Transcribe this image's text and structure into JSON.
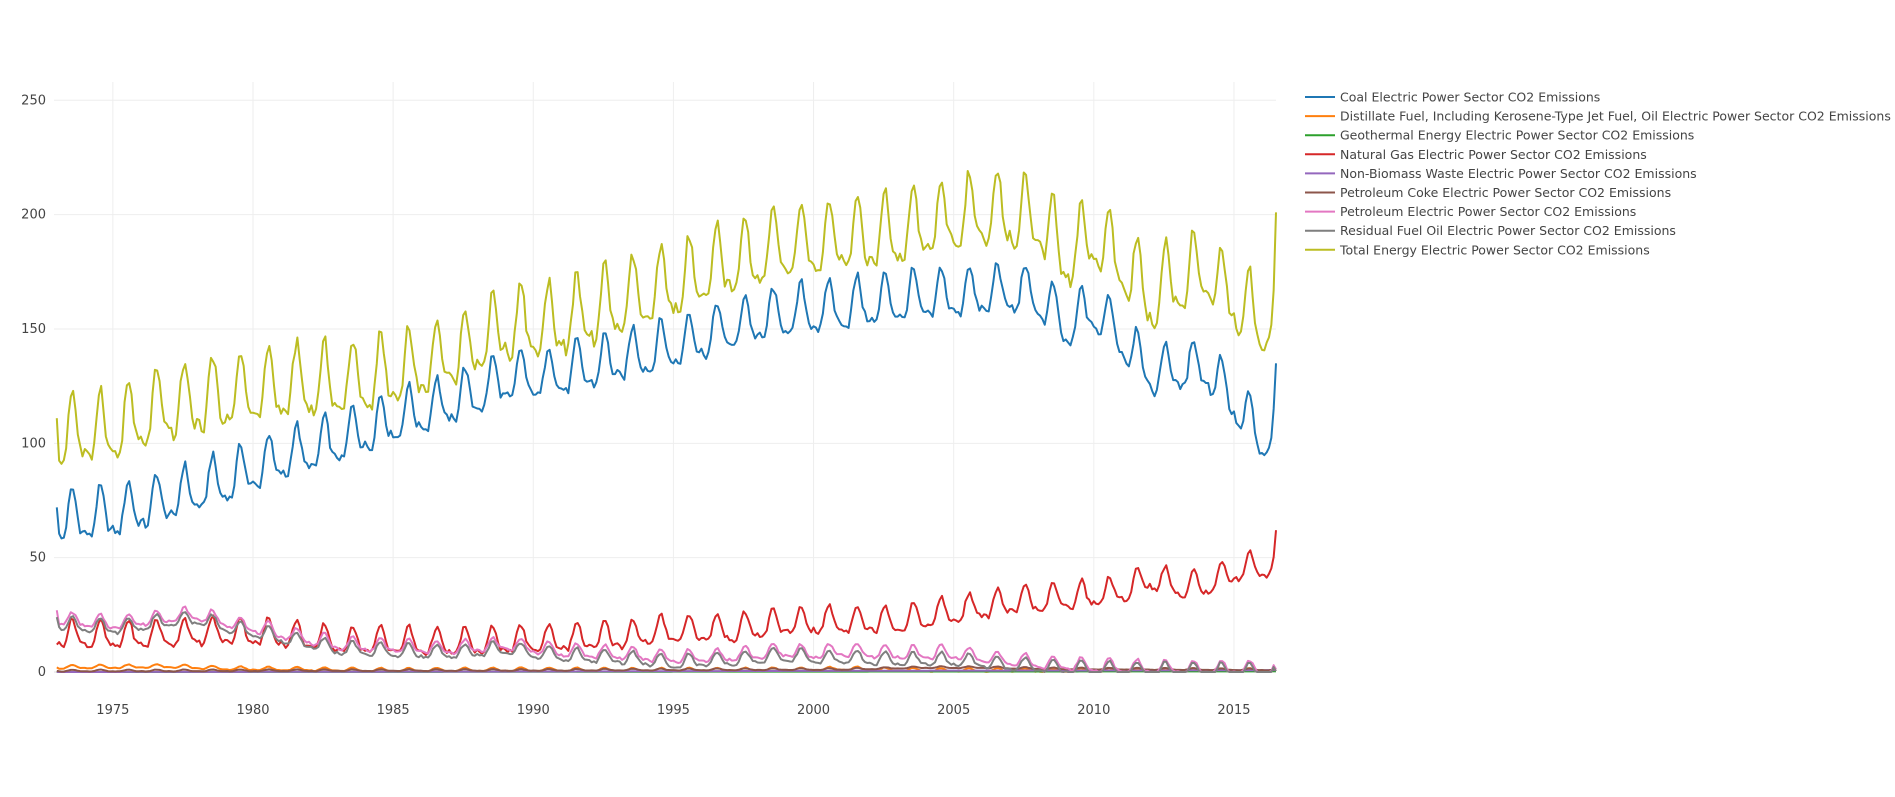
{
  "chart_data": {
    "type": "line",
    "title": "",
    "xlabel": "",
    "ylabel": "",
    "xlim": [
      1972.9,
      2016.5
    ],
    "ylim": [
      0,
      258
    ],
    "x_ticks": [
      1975,
      1980,
      1985,
      1990,
      1995,
      2000,
      2005,
      2010,
      2015
    ],
    "y_ticks": [
      0,
      50,
      100,
      150,
      200,
      250
    ],
    "grid": true,
    "legend_position": "right",
    "x_frequency": "monthly",
    "series": [
      {
        "name": "Coal Electric Power Sector CO2 Emissions",
        "color": "#1f77b4",
        "anchors": [
          [
            1973,
            66
          ],
          [
            1975,
            68
          ],
          [
            1977,
            75
          ],
          [
            1979,
            83
          ],
          [
            1981,
            93
          ],
          [
            1983,
            100
          ],
          [
            1985,
            110
          ],
          [
            1987,
            117
          ],
          [
            1989,
            127
          ],
          [
            1991,
            130
          ],
          [
            1993,
            136
          ],
          [
            1995,
            142
          ],
          [
            1997,
            150
          ],
          [
            1999,
            156
          ],
          [
            2001,
            159
          ],
          [
            2003,
            162
          ],
          [
            2005,
            164
          ],
          [
            2007,
            166
          ],
          [
            2008,
            164
          ],
          [
            2009,
            150
          ],
          [
            2010,
            158
          ],
          [
            2011,
            146
          ],
          [
            2012,
            130
          ],
          [
            2013,
            132
          ],
          [
            2014,
            133
          ],
          [
            2015,
            118
          ],
          [
            2016,
            100
          ],
          [
            2016.45,
            108
          ]
        ],
        "amplitude": 11,
        "endpoints": {
          "start": 72,
          "end": 135
        }
      },
      {
        "name": "Distillate Fuel, Including Kerosene-Type Jet Fuel, Oil Electric Power Sector CO2 Emissions",
        "color": "#ff7f0e",
        "anchors": [
          [
            1973,
            2
          ],
          [
            1977,
            2.5
          ],
          [
            1979,
            1.5
          ],
          [
            1985,
            0.8
          ],
          [
            1990,
            1
          ],
          [
            1995,
            0.8
          ],
          [
            2000,
            1
          ],
          [
            2001,
            1.5
          ],
          [
            2003,
            0.8
          ],
          [
            2010,
            0.6
          ],
          [
            2016.45,
            0.6
          ]
        ],
        "amplitude": 0.8,
        "endpoints": {
          "start": 2,
          "end": 0.6
        }
      },
      {
        "name": "Geothermal Energy Electric Power Sector CO2 Emissions",
        "color": "#2ca02c",
        "anchors": [
          [
            1973,
            0
          ],
          [
            1990,
            0.1
          ],
          [
            2016.45,
            0.3
          ]
        ],
        "amplitude": 0,
        "endpoints": {
          "start": 0,
          "end": 0.3
        }
      },
      {
        "name": "Natural Gas Electric Power Sector CO2 Emissions",
        "color": "#d62728",
        "anchors": [
          [
            1973,
            16
          ],
          [
            1975,
            15
          ],
          [
            1977,
            16
          ],
          [
            1979,
            17
          ],
          [
            1981,
            16
          ],
          [
            1983,
            13
          ],
          [
            1985,
            13
          ],
          [
            1987,
            12
          ],
          [
            1989,
            13
          ],
          [
            1991,
            14
          ],
          [
            1993,
            15
          ],
          [
            1995,
            18
          ],
          [
            1997,
            18
          ],
          [
            1999,
            21
          ],
          [
            2001,
            22
          ],
          [
            2003,
            22
          ],
          [
            2005,
            26
          ],
          [
            2007,
            30
          ],
          [
            2009,
            32
          ],
          [
            2011,
            35
          ],
          [
            2012,
            41
          ],
          [
            2013,
            37
          ],
          [
            2014,
            38
          ],
          [
            2015,
            44
          ],
          [
            2016.45,
            47
          ]
        ],
        "amplitude": 6,
        "endpoints": {
          "start": 12,
          "end": 62
        }
      },
      {
        "name": "Non-Biomass Waste Electric Power Sector CO2 Emissions",
        "color": "#9467bd",
        "anchors": [
          [
            1973,
            0
          ],
          [
            1990,
            0.2
          ],
          [
            2000,
            0.5
          ],
          [
            2016.45,
            0.8
          ]
        ],
        "amplitude": 0,
        "endpoints": {
          "start": 0,
          "end": 0.8
        }
      },
      {
        "name": "Petroleum Coke Electric Power Sector CO2 Emissions",
        "color": "#8c564b",
        "anchors": [
          [
            1973,
            0.5
          ],
          [
            1990,
            0.8
          ],
          [
            1995,
            1
          ],
          [
            2001,
            1.2
          ],
          [
            2004,
            2
          ],
          [
            2006,
            2
          ],
          [
            2008,
            1.5
          ],
          [
            2016.45,
            1
          ]
        ],
        "amplitude": 0.4,
        "endpoints": {
          "start": 0.5,
          "end": 1
        }
      },
      {
        "name": "Petroleum Electric Power Sector CO2 Emissions",
        "color": "#e377c2",
        "anchors": [
          [
            1973,
            23
          ],
          [
            1975,
            21
          ],
          [
            1977,
            24
          ],
          [
            1978,
            25
          ],
          [
            1979,
            22
          ],
          [
            1981,
            17
          ],
          [
            1983,
            12
          ],
          [
            1985,
            11
          ],
          [
            1987,
            10
          ],
          [
            1989,
            12
          ],
          [
            1991,
            9
          ],
          [
            1993,
            8
          ],
          [
            1995,
            6
          ],
          [
            1997,
            7
          ],
          [
            1999,
            9
          ],
          [
            2000,
            8
          ],
          [
            2001,
            9
          ],
          [
            2003,
            8
          ],
          [
            2005,
            8
          ],
          [
            2007,
            5
          ],
          [
            2009,
            3
          ],
          [
            2011,
            2
          ],
          [
            2013,
            1.5
          ],
          [
            2016.45,
            1.2
          ]
        ],
        "amplitude": 3,
        "endpoints": {
          "start": 27,
          "end": 1.2
        }
      },
      {
        "name": "Residual Fuel Oil Electric Power Sector CO2 Emissions",
        "color": "#7f7f7f",
        "anchors": [
          [
            1973,
            21
          ],
          [
            1975,
            19
          ],
          [
            1977,
            22
          ],
          [
            1978,
            23
          ],
          [
            1979,
            20
          ],
          [
            1981,
            15
          ],
          [
            1983,
            10
          ],
          [
            1985,
            9
          ],
          [
            1987,
            8
          ],
          [
            1989,
            10
          ],
          [
            1991,
            7
          ],
          [
            1993,
            6
          ],
          [
            1995,
            4
          ],
          [
            1997,
            5
          ],
          [
            1999,
            7
          ],
          [
            2000,
            6
          ],
          [
            2001,
            6
          ],
          [
            2003,
            5
          ],
          [
            2005,
            5
          ],
          [
            2007,
            3
          ],
          [
            2009,
            1.5
          ],
          [
            2011,
            1
          ],
          [
            2013,
            0.5
          ],
          [
            2016.45,
            0.4
          ]
        ],
        "amplitude": 3,
        "endpoints": {
          "start": 24,
          "end": 0.4
        }
      },
      {
        "name": "Total Energy Electric Power Sector CO2 Emissions",
        "color": "#bcbd22",
        "anchors": [
          [
            1973,
            103
          ],
          [
            1975,
            105
          ],
          [
            1977,
            115
          ],
          [
            1979,
            120
          ],
          [
            1981,
            124
          ],
          [
            1983,
            125
          ],
          [
            1985,
            130
          ],
          [
            1987,
            137
          ],
          [
            1989,
            150
          ],
          [
            1991,
            152
          ],
          [
            1993,
            160
          ],
          [
            1995,
            168
          ],
          [
            1997,
            178
          ],
          [
            1999,
            185
          ],
          [
            2001,
            188
          ],
          [
            2003,
            190
          ],
          [
            2005,
            198
          ],
          [
            2007,
            200
          ],
          [
            2008,
            197
          ],
          [
            2009,
            180
          ],
          [
            2010,
            190
          ],
          [
            2011,
            178
          ],
          [
            2012,
            163
          ],
          [
            2013,
            172
          ],
          [
            2014,
            174
          ],
          [
            2015,
            163
          ],
          [
            2016,
            150
          ],
          [
            2016.45,
            160
          ]
        ],
        "amplitude": 16,
        "endpoints": {
          "start": 111,
          "end": 201
        }
      }
    ]
  }
}
